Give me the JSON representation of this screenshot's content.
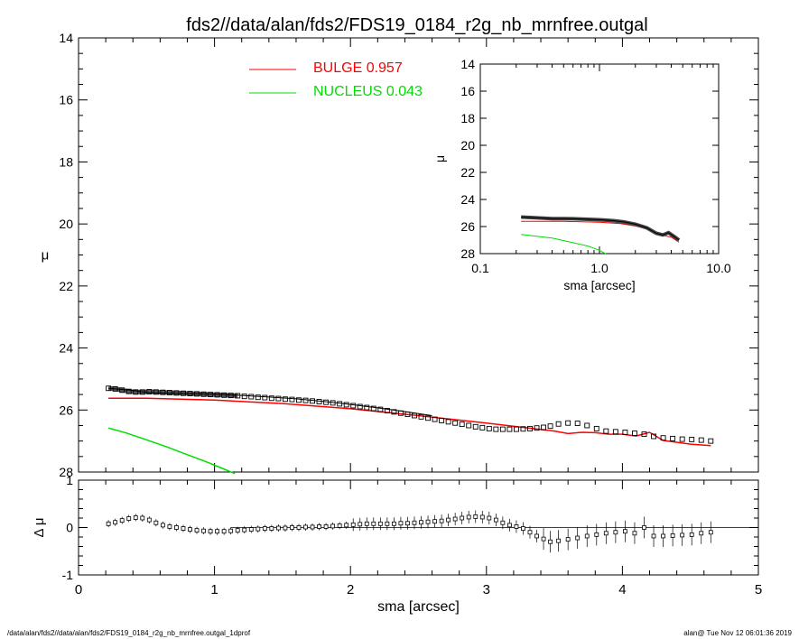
{
  "title": "fds2//data/alan/fds2/FDS19_0184_r2g_nb_mrnfree.outgal",
  "footer_left": "/data/alan/fds2//data/alan/fds2/FDS19_0184_r2g_nb_mrnfree.outgal_1dprof",
  "footer_right": "alan@  Tue Nov 12 06:01:36 2019",
  "colors": {
    "bulge": "#ff0000",
    "nucleus": "#00dd00",
    "data": "#000000",
    "total": "#000000"
  },
  "chart_data": [
    {
      "id": "main",
      "type": "scatter",
      "xlim": [
        0,
        5
      ],
      "ylim": [
        28,
        14
      ],
      "xticks": [
        "0",
        "1",
        "2",
        "3",
        "4",
        "5"
      ],
      "yticks": [
        "14",
        "16",
        "18",
        "20",
        "22",
        "24",
        "26",
        "28"
      ],
      "ylabel": "μ",
      "legend": [
        {
          "label": "BULGE",
          "value": "0.957",
          "color": "#ff0000"
        },
        {
          "label": "NUCLEUS",
          "value": "0.043",
          "color": "#00dd00"
        }
      ],
      "legend_position": "top-center",
      "series": [
        {
          "name": "data",
          "marker": "square",
          "x": [
            0.22,
            0.27,
            0.32,
            0.37,
            0.42,
            0.47,
            0.52,
            0.57,
            0.62,
            0.67,
            0.72,
            0.77,
            0.82,
            0.87,
            0.92,
            0.97,
            1.02,
            1.07,
            1.12,
            1.17,
            1.22,
            1.27,
            1.32,
            1.37,
            1.42,
            1.47,
            1.52,
            1.57,
            1.62,
            1.67,
            1.72,
            1.77,
            1.82,
            1.87,
            1.92,
            1.97,
            2.02,
            2.07,
            2.12,
            2.17,
            2.22,
            2.27,
            2.32,
            2.37,
            2.42,
            2.47,
            2.52,
            2.57,
            2.62,
            2.67,
            2.72,
            2.77,
            2.82,
            2.87,
            2.92,
            2.97,
            3.02,
            3.07,
            3.12,
            3.17,
            3.22,
            3.27,
            3.32,
            3.37,
            3.42,
            3.47,
            3.53,
            3.6,
            3.67,
            3.74,
            3.81,
            3.88,
            3.95,
            4.02,
            4.09,
            4.16,
            4.23,
            4.3,
            4.37,
            4.44,
            4.51,
            4.58,
            4.65
          ],
          "y": [
            25.3,
            25.32,
            25.36,
            25.4,
            25.42,
            25.42,
            25.41,
            25.42,
            25.43,
            25.44,
            25.45,
            25.46,
            25.47,
            25.48,
            25.49,
            25.5,
            25.51,
            25.52,
            25.53,
            25.54,
            25.56,
            25.57,
            25.59,
            25.6,
            25.62,
            25.63,
            25.65,
            25.66,
            25.68,
            25.69,
            25.71,
            25.73,
            25.75,
            25.77,
            25.8,
            25.83,
            25.86,
            25.89,
            25.92,
            25.95,
            25.98,
            26.02,
            26.06,
            26.1,
            26.14,
            26.18,
            26.22,
            26.26,
            26.3,
            26.34,
            26.38,
            26.42,
            26.46,
            26.5,
            26.54,
            26.57,
            26.6,
            26.62,
            26.62,
            26.62,
            26.62,
            26.61,
            26.6,
            26.58,
            26.56,
            26.52,
            26.45,
            26.42,
            26.43,
            26.5,
            26.6,
            26.68,
            26.7,
            26.72,
            26.75,
            26.78,
            26.85,
            26.9,
            26.92,
            26.94,
            26.95,
            26.97,
            27.0
          ]
        },
        {
          "name": "total",
          "type": "line",
          "x": [
            0.22,
            0.3,
            0.38,
            0.45,
            0.52,
            0.6,
            0.7,
            0.8,
            0.9,
            1.0,
            1.2,
            1.4,
            1.6,
            1.8,
            2.0,
            2.2,
            2.4,
            2.6
          ],
          "y": [
            25.3,
            25.33,
            25.36,
            25.4,
            25.44,
            25.45,
            25.46,
            25.47,
            25.48,
            25.49,
            25.53,
            25.58,
            25.64,
            25.72,
            25.82,
            25.93,
            26.05,
            26.18
          ]
        },
        {
          "name": "bulge",
          "type": "line",
          "x": [
            0.22,
            0.5,
            1.0,
            1.5,
            2.0,
            2.5,
            3.0,
            3.5,
            3.6,
            3.7,
            3.8,
            3.9,
            4.0,
            4.1,
            4.15,
            4.2,
            4.3,
            4.5,
            4.65
          ],
          "y": [
            25.62,
            25.62,
            25.68,
            25.79,
            25.96,
            26.18,
            26.42,
            26.68,
            26.76,
            26.72,
            26.73,
            26.78,
            26.78,
            26.84,
            26.78,
            26.72,
            26.98,
            27.1,
            27.15
          ]
        },
        {
          "name": "nucleus",
          "type": "line",
          "x": [
            0.22,
            0.35,
            0.5,
            0.65,
            0.8,
            0.95,
            1.05,
            1.15
          ],
          "y": [
            26.58,
            26.74,
            26.96,
            27.19,
            27.44,
            27.69,
            27.87,
            28.05
          ]
        }
      ]
    },
    {
      "id": "residual",
      "type": "scatter",
      "xlim": [
        0,
        5
      ],
      "ylim": [
        -1,
        1
      ],
      "xticks": [
        "0",
        "1",
        "2",
        "3",
        "4",
        "5"
      ],
      "yticks": [
        "1",
        "0",
        "-1"
      ],
      "xlabel": "sma [arcsec]",
      "ylabel": "Δ μ",
      "series": [
        {
          "name": "residual",
          "marker": "square",
          "x": [
            0.22,
            0.27,
            0.32,
            0.37,
            0.42,
            0.47,
            0.52,
            0.57,
            0.62,
            0.67,
            0.72,
            0.77,
            0.82,
            0.87,
            0.92,
            0.97,
            1.02,
            1.07,
            1.12,
            1.17,
            1.22,
            1.27,
            1.32,
            1.37,
            1.42,
            1.47,
            1.52,
            1.57,
            1.62,
            1.67,
            1.72,
            1.77,
            1.82,
            1.87,
            1.92,
            1.97,
            2.02,
            2.07,
            2.12,
            2.17,
            2.22,
            2.27,
            2.32,
            2.37,
            2.42,
            2.47,
            2.52,
            2.57,
            2.62,
            2.67,
            2.72,
            2.77,
            2.82,
            2.87,
            2.92,
            2.97,
            3.02,
            3.07,
            3.12,
            3.17,
            3.22,
            3.27,
            3.32,
            3.37,
            3.42,
            3.47,
            3.53,
            3.6,
            3.67,
            3.74,
            3.81,
            3.88,
            3.95,
            4.02,
            4.09,
            4.16,
            4.23,
            4.3,
            4.37,
            4.44,
            4.51,
            4.58,
            4.65
          ],
          "y": [
            0.08,
            0.11,
            0.15,
            0.19,
            0.21,
            0.2,
            0.16,
            0.1,
            0.05,
            0.02,
            0.0,
            -0.02,
            -0.04,
            -0.06,
            -0.07,
            -0.08,
            -0.08,
            -0.08,
            -0.07,
            -0.06,
            -0.05,
            -0.04,
            -0.03,
            -0.02,
            -0.02,
            -0.01,
            -0.01,
            0.0,
            0.0,
            0.01,
            0.01,
            0.02,
            0.02,
            0.03,
            0.04,
            0.05,
            0.06,
            0.07,
            0.08,
            0.08,
            0.08,
            0.08,
            0.08,
            0.09,
            0.09,
            0.1,
            0.11,
            0.12,
            0.13,
            0.14,
            0.16,
            0.18,
            0.2,
            0.22,
            0.23,
            0.22,
            0.2,
            0.16,
            0.1,
            0.05,
            0.02,
            -0.02,
            -0.1,
            -0.18,
            -0.24,
            -0.3,
            -0.28,
            -0.25,
            -0.22,
            -0.18,
            -0.15,
            -0.12,
            -0.1,
            -0.08,
            -0.12,
            0.0,
            -0.18,
            -0.18,
            -0.17,
            -0.16,
            -0.15,
            -0.12,
            -0.1
          ]
        }
      ]
    },
    {
      "id": "inset",
      "type": "scatter",
      "xscale": "log",
      "xlim": [
        0.1,
        10
      ],
      "ylim": [
        28,
        14
      ],
      "xticks": [
        "0.1",
        "1.0",
        "10.0"
      ],
      "yticks": [
        "14",
        "16",
        "18",
        "20",
        "22",
        "24",
        "26",
        "28"
      ],
      "xlabel": "sma [arcsec]",
      "ylabel": "μ",
      "series": [
        {
          "name": "data",
          "x": [
            0.22,
            0.3,
            0.4,
            0.5,
            0.6,
            0.8,
            1.0,
            1.3,
            1.6,
            2.0,
            2.5,
            3.0,
            3.4,
            3.8,
            4.2,
            4.65
          ],
          "y": [
            25.3,
            25.36,
            25.42,
            25.42,
            25.43,
            25.47,
            25.5,
            25.57,
            25.66,
            25.83,
            26.1,
            26.5,
            26.62,
            26.45,
            26.72,
            27.0
          ]
        },
        {
          "name": "bulge",
          "x": [
            0.22,
            0.5,
            1.0,
            1.5,
            2.0,
            2.5,
            3.0,
            3.5,
            4.0,
            4.65
          ],
          "y": [
            25.62,
            25.62,
            25.68,
            25.79,
            25.96,
            26.18,
            26.42,
            26.68,
            26.78,
            27.15
          ]
        },
        {
          "name": "nucleus",
          "x": [
            0.22,
            0.4,
            0.6,
            0.8,
            1.0,
            1.15
          ],
          "y": [
            26.58,
            26.85,
            27.19,
            27.44,
            27.75,
            28.05
          ]
        }
      ]
    }
  ]
}
